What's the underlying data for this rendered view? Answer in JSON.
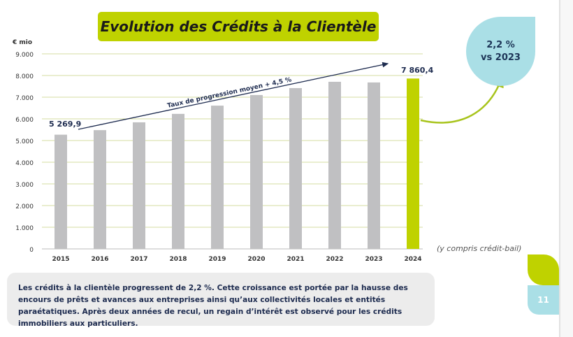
{
  "title": "Evolution des Crédits à la Clientèle",
  "chart_data": {
    "type": "bar",
    "ylabel": "€ mio",
    "categories": [
      "2015",
      "2016",
      "2017",
      "2018",
      "2019",
      "2020",
      "2021",
      "2022",
      "2023",
      "2024"
    ],
    "values": [
      5269.9,
      5480,
      5840,
      6230,
      6610,
      7100,
      7420,
      7710,
      7680,
      7860.4
    ],
    "ylim": [
      0,
      9000
    ],
    "yticks": [
      "0",
      "1.000",
      "2.000",
      "3.000",
      "4.000",
      "5.000",
      "6.000",
      "7.000",
      "8.000",
      "9.000"
    ],
    "grid": true,
    "data_labels": {
      "first": "5 269,9",
      "last": "7 860,4"
    },
    "trend_annotation": "Taux de progression moyen + 4,5 %",
    "colors": {
      "bars": "#c0c0c2",
      "highlight": "#bfd200",
      "grid": "#d6dca0"
    }
  },
  "bubble": {
    "line1": "2,2 %",
    "line2": "vs 2023"
  },
  "footnote": "(y compris crédit-bail)",
  "note": "Les crédits à la clientèle progressent de 2,2 %. Cette croissance est portée par la hausse des encours de prêts et avances aux entreprises ainsi qu’aux collectivités locales et entités paraétatiques. Après deux années de recul, un regain d’intérêt est observé pour les crédits immobiliers aux particuliers.",
  "page_number": "11"
}
